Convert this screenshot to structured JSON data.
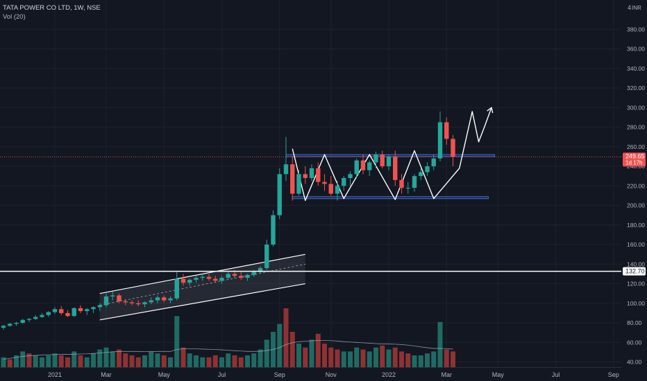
{
  "header": {
    "symbol_line": "TATA POWER CO LTD, 1W, NSE",
    "volume_line": "Vol (20)"
  },
  "colors": {
    "background": "#131722",
    "up": "#26a69a",
    "down": "#ef5350",
    "vol_up": "#1f6b63",
    "vol_down": "#8e3233",
    "axis_text": "#b2b5be",
    "grid": "#1e222d",
    "annotation": "#ffffff",
    "zone": "#2962ff"
  },
  "chart_data": {
    "type": "candlestick",
    "title": "TATA POWER CO LTD, 1W, NSE",
    "currency": "INR",
    "ylim": [
      0,
      400
    ],
    "y_ticks": [
      40,
      60,
      80,
      100,
      120,
      140,
      160,
      180,
      200,
      220,
      240,
      260,
      280,
      300,
      320,
      340,
      360,
      380
    ],
    "y_tick_labels": [
      "40.00",
      "60.00",
      "80.00",
      "100.00",
      "120.00",
      "140.00",
      "160.00",
      "180.00",
      "200.00",
      "220.00",
      "240.00",
      "260.00",
      "280.00",
      "300.00",
      "320.00",
      "340.00",
      "360.00",
      "380.00"
    ],
    "top_tick_label": "4",
    "x_ticks": [
      {
        "label": "2021",
        "bar": 8
      },
      {
        "label": "Mar",
        "bar": 16
      },
      {
        "label": "May",
        "bar": 25
      },
      {
        "label": "Jul",
        "bar": 34
      },
      {
        "label": "Sep",
        "bar": 43
      },
      {
        "label": "Nov",
        "bar": 51
      },
      {
        "label": "2022",
        "bar": 60
      },
      {
        "label": "Mar",
        "bar": 69
      },
      {
        "label": "May",
        "bar": 77
      },
      {
        "label": "Jul",
        "bar": 86
      },
      {
        "label": "Sep",
        "bar": 95
      }
    ],
    "last_price": {
      "value": 249.65,
      "label": "249.65",
      "countdown": "1d 17h"
    },
    "horizontal_line": {
      "value": 132.7,
      "label": "132.70"
    },
    "candles": [
      [
        75,
        78,
        73,
        77
      ],
      [
        77,
        80,
        76,
        79
      ],
      [
        79,
        81,
        77,
        80
      ],
      [
        80,
        84,
        79,
        83
      ],
      [
        83,
        85,
        81,
        84
      ],
      [
        84,
        88,
        83,
        86
      ],
      [
        86,
        90,
        85,
        88
      ],
      [
        88,
        92,
        86,
        91
      ],
      [
        91,
        96,
        89,
        94
      ],
      [
        94,
        97,
        88,
        90
      ],
      [
        90,
        93,
        86,
        87
      ],
      [
        87,
        96,
        86,
        95
      ],
      [
        95,
        98,
        90,
        92
      ],
      [
        92,
        95,
        88,
        94
      ],
      [
        94,
        97,
        90,
        96
      ],
      [
        96,
        100,
        92,
        98
      ],
      [
        98,
        110,
        96,
        107
      ],
      [
        107,
        112,
        103,
        108
      ],
      [
        108,
        110,
        100,
        102
      ],
      [
        102,
        104,
        98,
        101
      ],
      [
        101,
        103,
        98,
        100
      ],
      [
        100,
        103,
        97,
        99
      ],
      [
        99,
        102,
        96,
        101
      ],
      [
        101,
        106,
        99,
        103
      ],
      [
        103,
        108,
        100,
        106
      ],
      [
        106,
        108,
        101,
        103
      ],
      [
        103,
        107,
        100,
        105
      ],
      [
        105,
        132,
        103,
        125
      ],
      [
        125,
        130,
        118,
        121
      ],
      [
        121,
        125,
        118,
        124
      ],
      [
        124,
        128,
        121,
        126
      ],
      [
        126,
        130,
        123,
        127
      ],
      [
        127,
        130,
        123,
        125
      ],
      [
        125,
        128,
        121,
        123
      ],
      [
        123,
        128,
        120,
        126
      ],
      [
        126,
        132,
        124,
        130
      ],
      [
        130,
        134,
        126,
        128
      ],
      [
        128,
        132,
        124,
        126
      ],
      [
        126,
        130,
        123,
        129
      ],
      [
        129,
        134,
        127,
        132
      ],
      [
        132,
        138,
        130,
        136
      ],
      [
        136,
        165,
        134,
        160
      ],
      [
        160,
        195,
        158,
        190
      ],
      [
        190,
        238,
        186,
        232
      ],
      [
        232,
        270,
        225,
        242
      ],
      [
        242,
        250,
        205,
        212
      ],
      [
        212,
        236,
        210,
        232
      ],
      [
        232,
        240,
        222,
        228
      ],
      [
        228,
        242,
        225,
        238
      ],
      [
        238,
        244,
        220,
        224
      ],
      [
        224,
        232,
        215,
        222
      ],
      [
        222,
        230,
        210,
        212
      ],
      [
        212,
        225,
        205,
        220
      ],
      [
        220,
        230,
        215,
        228
      ],
      [
        228,
        235,
        220,
        232
      ],
      [
        232,
        248,
        228,
        246
      ],
      [
        246,
        252,
        232,
        236
      ],
      [
        236,
        246,
        230,
        244
      ],
      [
        244,
        255,
        238,
        252
      ],
      [
        252,
        256,
        238,
        240
      ],
      [
        240,
        252,
        236,
        250
      ],
      [
        250,
        256,
        220,
        226
      ],
      [
        226,
        232,
        212,
        218
      ],
      [
        218,
        224,
        212,
        218
      ],
      [
        218,
        232,
        214,
        230
      ],
      [
        230,
        238,
        226,
        234
      ],
      [
        234,
        244,
        230,
        240
      ],
      [
        240,
        252,
        236,
        248
      ],
      [
        248,
        296,
        245,
        285
      ],
      [
        285,
        290,
        262,
        268
      ],
      [
        268,
        272,
        240,
        249.65
      ]
    ],
    "volume": {
      "max": 30,
      "bars": [
        [
          5,
          1
        ],
        [
          4,
          0
        ],
        [
          6,
          1
        ],
        [
          8,
          1
        ],
        [
          7,
          0
        ],
        [
          6,
          1
        ],
        [
          5,
          1
        ],
        [
          6,
          1
        ],
        [
          7,
          1
        ],
        [
          6,
          0
        ],
        [
          5,
          0
        ],
        [
          8,
          1
        ],
        [
          6,
          0
        ],
        [
          5,
          1
        ],
        [
          7,
          1
        ],
        [
          9,
          1
        ],
        [
          10,
          1
        ],
        [
          8,
          1
        ],
        [
          9,
          0
        ],
        [
          7,
          0
        ],
        [
          6,
          0
        ],
        [
          5,
          0
        ],
        [
          6,
          1
        ],
        [
          8,
          1
        ],
        [
          7,
          1
        ],
        [
          6,
          0
        ],
        [
          5,
          1
        ],
        [
          26,
          1
        ],
        [
          10,
          0
        ],
        [
          7,
          1
        ],
        [
          6,
          1
        ],
        [
          5,
          1
        ],
        [
          5,
          0
        ],
        [
          6,
          0
        ],
        [
          5,
          1
        ],
        [
          7,
          1
        ],
        [
          6,
          0
        ],
        [
          5,
          0
        ],
        [
          6,
          1
        ],
        [
          7,
          1
        ],
        [
          9,
          1
        ],
        [
          14,
          1
        ],
        [
          18,
          1
        ],
        [
          22,
          1
        ],
        [
          30,
          0
        ],
        [
          18,
          0
        ],
        [
          12,
          1
        ],
        [
          10,
          0
        ],
        [
          14,
          1
        ],
        [
          17,
          0
        ],
        [
          12,
          0
        ],
        [
          10,
          0
        ],
        [
          9,
          0
        ],
        [
          8,
          1
        ],
        [
          8,
          1
        ],
        [
          10,
          1
        ],
        [
          9,
          0
        ],
        [
          8,
          1
        ],
        [
          10,
          1
        ],
        [
          11,
          0
        ],
        [
          9,
          1
        ],
        [
          10,
          0
        ],
        [
          8,
          0
        ],
        [
          7,
          0
        ],
        [
          6,
          1
        ],
        [
          6,
          1
        ],
        [
          7,
          1
        ],
        [
          8,
          1
        ],
        [
          23,
          1
        ],
        [
          9,
          0
        ],
        [
          8,
          0
        ]
      ]
    },
    "volume_ma": [
      4,
      4.5,
      5,
      5.5,
      5.8,
      6,
      6.2,
      6.3,
      6.4,
      6.5,
      6.5,
      6.6,
      6.7,
      6.8,
      7,
      7.2,
      7.5,
      7.8,
      8,
      8,
      8,
      8,
      7.9,
      7.9,
      8,
      8,
      8,
      9,
      9.3,
      9.3,
      9.3,
      9.2,
      9.1,
      9,
      8.8,
      8.6,
      8.4,
      8.2,
      8,
      8,
      8.1,
      8.5,
      9,
      10,
      11.5,
      12.5,
      13,
      13.2,
      13.4,
      13.6,
      13.6,
      13.5,
      13.3,
      13,
      12.8,
      12.6,
      12.4,
      12.2,
      12,
      11.8,
      11.8,
      11.7,
      11.5,
      11.2,
      10.8,
      10.3,
      9.9,
      9.5,
      9.6,
      9.4,
      9.2
    ],
    "annotations": {
      "channel": {
        "upper": [
          [
            15,
            110
          ],
          [
            47,
            150
          ]
        ],
        "mid": [
          [
            15,
            98
          ],
          [
            47,
            140
          ]
        ],
        "lower": [
          [
            15,
            83
          ],
          [
            47,
            120
          ]
        ]
      },
      "resistance_zone": [
        250,
        252
      ],
      "support_zone": [
        207,
        209
      ],
      "pattern_path": [
        [
          45,
          258
        ],
        [
          47,
          205
        ],
        [
          50,
          252
        ],
        [
          53,
          207
        ],
        [
          57,
          252
        ],
        [
          61,
          206
        ],
        [
          64,
          256
        ],
        [
          67,
          207
        ],
        [
          71,
          238
        ],
        [
          73,
          296
        ],
        [
          74,
          265
        ],
        [
          75,
          282
        ],
        [
          76,
          300
        ]
      ]
    }
  }
}
